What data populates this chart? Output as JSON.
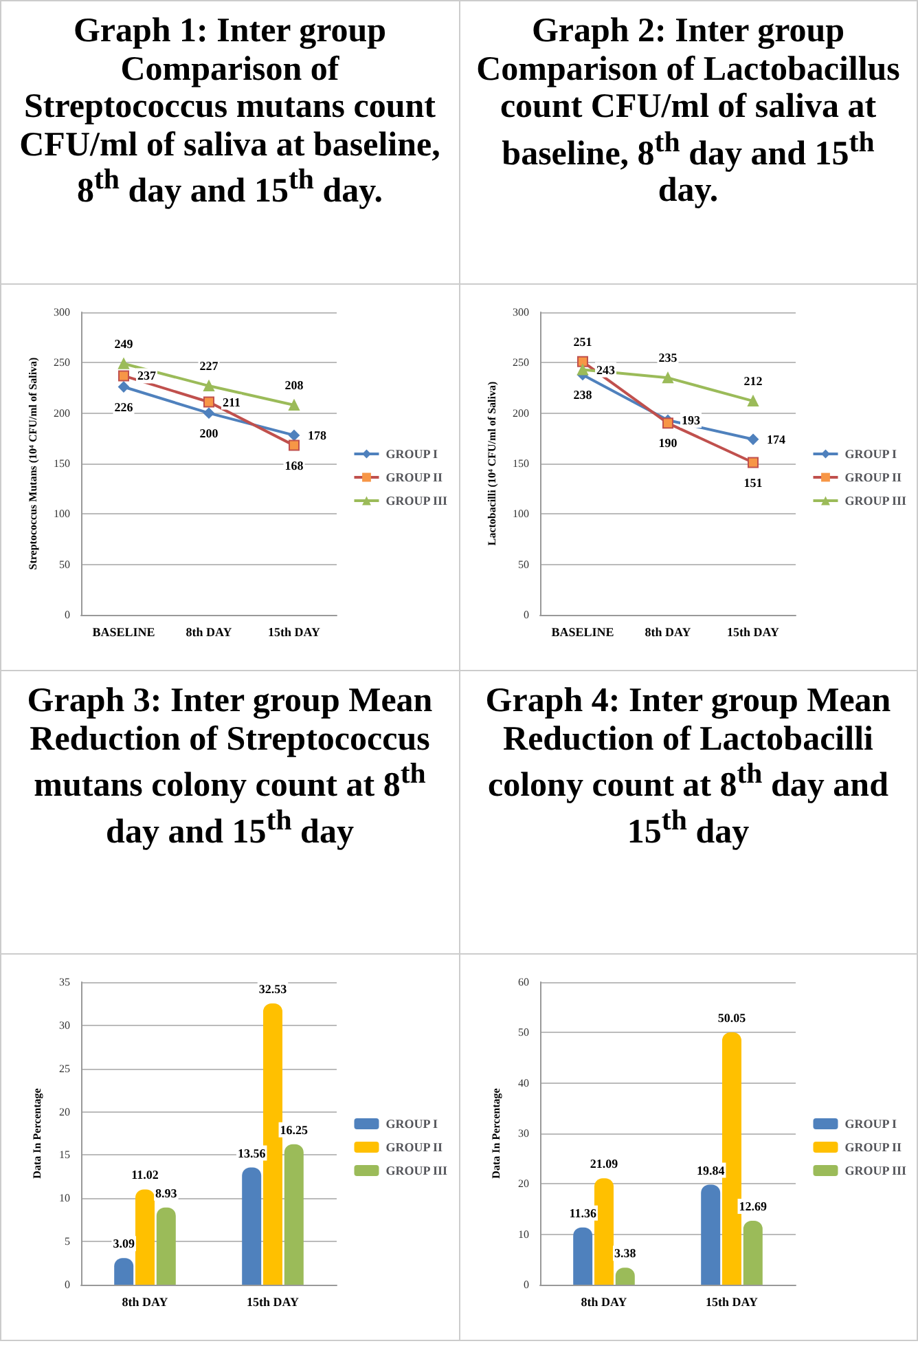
{
  "chart_data": [
    {
      "type": "line",
      "title": "Graph 1: Inter group Comparison of Streptococcus mutans count CFU/ml of saliva at baseline, 8$^{th}$ day and 15$^{th}$ day.",
      "ylabel": "Streptococcus Mutans (10⁴ CFU/ml of Saliva)",
      "categories": [
        "BASELINE",
        "8th DAY",
        "15th DAY"
      ],
      "series": [
        {
          "name": "GROUP I",
          "color": "#4f81bd",
          "marker": "diamond",
          "values": [
            226,
            200,
            178
          ]
        },
        {
          "name": "GROUP II",
          "color": "#c0504d",
          "marker": "square",
          "values": [
            237,
            211,
            168
          ]
        },
        {
          "name": "GROUP III",
          "color": "#9bbb59",
          "marker": "triangle",
          "values": [
            249,
            227,
            208
          ]
        }
      ],
      "ylim": [
        0,
        300
      ],
      "yticks": [
        0,
        50,
        100,
        150,
        200,
        250,
        300
      ],
      "grid": "y",
      "legend": "right",
      "data_labels": true
    },
    {
      "type": "line",
      "title": "Graph 2: Inter group Comparison of Lactobacillus count CFU/ml of saliva at baseline, 8$^{th}$ day and 15$^{th}$ day.",
      "ylabel": "Lactobacilli (10⁴ CFU/ml of Saliva)",
      "categories": [
        "BASELINE",
        "8th DAY",
        "15th DAY"
      ],
      "series": [
        {
          "name": "GROUP I",
          "color": "#4f81bd",
          "marker": "diamond",
          "values": [
            238,
            193,
            174
          ]
        },
        {
          "name": "GROUP II",
          "color": "#c0504d",
          "marker": "square",
          "values": [
            251,
            190,
            151
          ]
        },
        {
          "name": "GROUP III",
          "color": "#9bbb59",
          "marker": "triangle",
          "values": [
            243,
            235,
            212
          ]
        }
      ],
      "ylim": [
        0,
        300
      ],
      "yticks": [
        0,
        50,
        100,
        150,
        200,
        250,
        300
      ],
      "grid": "y",
      "legend": "right",
      "data_labels": true
    },
    {
      "type": "bar",
      "title": "Graph 3: Inter group Mean Reduction of Streptococcus mutans colony count at 8$^{th}$ day and 15$^{th}$ day",
      "ylabel": "Data In Percentage",
      "categories": [
        "8th DAY",
        "15th DAY"
      ],
      "series": [
        {
          "name": "GROUP I",
          "color": "#4f81bd",
          "values": [
            3.09,
            13.56
          ]
        },
        {
          "name": "GROUP II",
          "color": "#ffc000",
          "values": [
            11.02,
            32.53
          ]
        },
        {
          "name": "GROUP III",
          "color": "#9bbb59",
          "values": [
            8.93,
            16.25
          ]
        }
      ],
      "ylim": [
        0,
        35
      ],
      "yticks": [
        0,
        5,
        10,
        15,
        20,
        25,
        30,
        35
      ],
      "grid": "y",
      "legend": "right",
      "data_labels": true
    },
    {
      "type": "bar",
      "title": "Graph 4: Inter group Mean Reduction of Lactobacilli colony count at 8$^{th}$ day and 15$^{th}$ day",
      "ylabel": "Data In Percentage",
      "categories": [
        "8th DAY",
        "15th DAY"
      ],
      "series": [
        {
          "name": "GROUP I",
          "color": "#4f81bd",
          "values": [
            11.36,
            19.84
          ]
        },
        {
          "name": "GROUP II",
          "color": "#ffc000",
          "values": [
            21.09,
            50.05
          ]
        },
        {
          "name": "GROUP III",
          "color": "#9bbb59",
          "values": [
            3.38,
            12.69
          ]
        }
      ],
      "ylim": [
        0,
        60
      ],
      "yticks": [
        0,
        10,
        20,
        30,
        40,
        50,
        60
      ],
      "grid": "y",
      "legend": "right",
      "data_labels": true
    }
  ]
}
